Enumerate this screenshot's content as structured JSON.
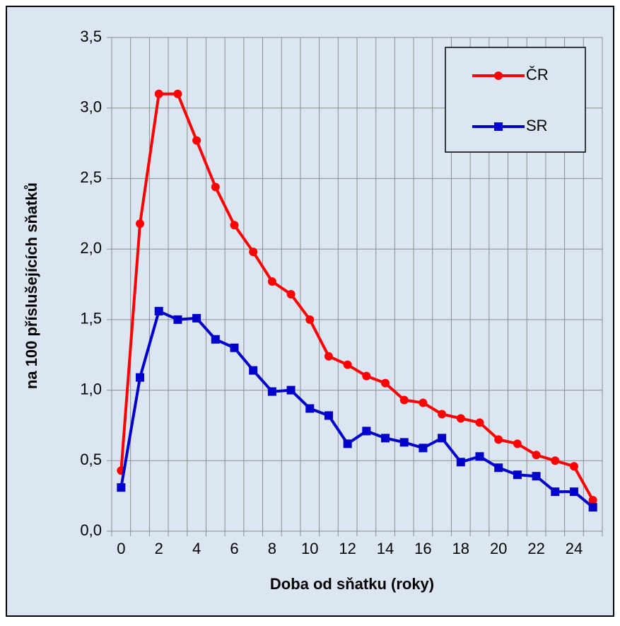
{
  "chart_data": {
    "type": "line",
    "x_label": "Doba od sňatku (roky)",
    "y_label": "na 100 příslušejících sňatků",
    "categories": [
      "0",
      null,
      "2",
      null,
      "4",
      null,
      "6",
      null,
      "8",
      null,
      "10",
      null,
      "12",
      null,
      "14",
      null,
      "16",
      null,
      "18",
      null,
      "20",
      null,
      "22",
      null,
      "24",
      null
    ],
    "series": [
      {
        "name": "ČR",
        "color": "#ff0000",
        "marker": "circle",
        "values": [
          0.43,
          2.18,
          3.1,
          3.1,
          2.77,
          2.44,
          2.17,
          1.98,
          1.77,
          1.68,
          1.5,
          1.24,
          1.18,
          1.1,
          1.05,
          0.93,
          0.91,
          0.83,
          0.8,
          0.77,
          0.65,
          0.62,
          0.54,
          0.5,
          0.46,
          0.22
        ]
      },
      {
        "name": "SR",
        "color": "#0000cc",
        "marker": "square",
        "values": [
          0.31,
          1.09,
          1.56,
          1.5,
          1.51,
          1.36,
          1.3,
          1.14,
          0.99,
          1.0,
          0.87,
          0.82,
          0.62,
          0.71,
          0.66,
          0.63,
          0.59,
          0.66,
          0.49,
          0.53,
          0.45,
          0.4,
          0.39,
          0.28,
          0.28,
          0.17
        ]
      }
    ],
    "ylim": [
      0,
      3.5
    ],
    "yticks": [
      {
        "value": 0,
        "label": "0,0"
      },
      {
        "value": 0.5,
        "label": "0,5"
      },
      {
        "value": 1,
        "label": "1,0"
      },
      {
        "value": 1.5,
        "label": "1,5"
      },
      {
        "value": 2,
        "label": "2,0"
      },
      {
        "value": 2.5,
        "label": "2,5"
      },
      {
        "value": 3,
        "label": "3,0"
      },
      {
        "value": 3.5,
        "label": "3,5"
      }
    ],
    "grid": true,
    "legend": "top-right"
  }
}
